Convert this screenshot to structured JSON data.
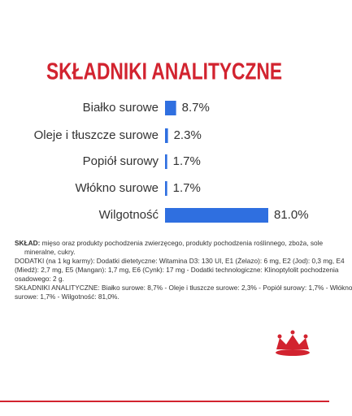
{
  "chart_data": {
    "type": "bar",
    "orientation": "horizontal",
    "title": "SKŁADNIKI ANALITYCZNE",
    "categories": [
      "Białko surowe",
      "Oleje i tłuszcze surowe",
      "Popiół surowy",
      "Włókno surowe",
      "Wilgotność"
    ],
    "values": [
      8.7,
      2.3,
      1.7,
      1.7,
      81.0
    ],
    "value_labels": [
      "8.7%",
      "2.3%",
      "1.7%",
      "1.7%",
      "81.0%"
    ],
    "color": "#2f6fe0",
    "title_color": "#d2232f"
  },
  "composition": {
    "label": "SKŁAD:",
    "lines": [
      "mięso oraz produkty pochodzenia zwierzęcego, produkty pochodzenia roślinnego, zboża, sole",
      "mineralne, cukry.",
      "DODATKI (na 1 kg karmy): Dodatki dietetyczne: Witamina D3: 130 UI, E1 (Żelazo): 6 mg, E2 (Jod): 0,3 mg, E4",
      "(Miedź): 2,7 mg, E5 (Mangan): 1,7 mg, E6 (Cynk): 17 mg - Dodatki technologiczne: Klinoptylolit pochodzenia",
      "osadowego: 2 g.",
      "SKŁADNIKI ANALITYCZNE: Białko surowe: 8,7% - Oleje i tłuszcze surowe: 2,3% - Popiół surowy: 1,7% - Włókno",
      "surowe: 1,7% - Wilgotność: 81,0%."
    ]
  }
}
